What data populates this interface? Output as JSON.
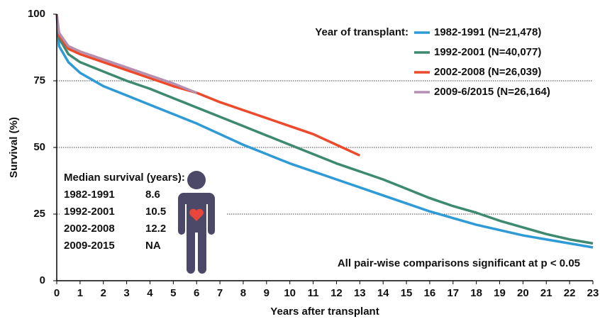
{
  "chart_data": {
    "type": "line",
    "xlabel": "Years after transplant",
    "ylabel": "Survival (%)",
    "legend_title": "Year of transplant:",
    "legend": "top-right",
    "x": [
      0,
      0.1,
      0.5,
      1,
      2,
      3,
      4,
      5,
      6,
      7,
      8,
      9,
      10,
      11,
      12,
      13,
      14,
      15,
      16,
      17,
      18,
      19,
      20,
      21,
      22,
      23
    ],
    "series": [
      {
        "name": "1982-1991 (N=21,478)",
        "color": "#2e9bd6",
        "values": [
          100,
          88,
          82,
          78,
          73,
          69.5,
          66,
          62.5,
          59,
          55,
          51,
          47.5,
          44,
          41,
          38,
          35,
          32,
          29,
          26,
          23.5,
          21,
          19,
          17,
          15.5,
          14,
          12.5
        ]
      },
      {
        "name": "1992-2001 (N=40,077)",
        "color": "#3d8a70",
        "values": [
          100,
          91,
          85,
          82,
          78.5,
          75,
          72,
          68.5,
          65,
          61.5,
          58,
          54.5,
          51,
          47.5,
          44,
          41,
          38,
          34.5,
          31,
          28,
          25.5,
          22.5,
          20,
          17.5,
          15.5,
          14
        ]
      },
      {
        "name": "2002-2008 (N=26,039)",
        "color": "#ec4a2a",
        "values": [
          100,
          92,
          87,
          85,
          82,
          79,
          76,
          73,
          70.5,
          67,
          64,
          61,
          58,
          55,
          51,
          47,
          null,
          null,
          null,
          null,
          null,
          null,
          null,
          null,
          null,
          null
        ]
      },
      {
        "name": "2009-6/2015 (N=26,164)",
        "color": "#b48fb0",
        "values": [
          100,
          93,
          88,
          86,
          83,
          80,
          77,
          74,
          70.5,
          null,
          null,
          null,
          null,
          null,
          null,
          null,
          null,
          null,
          null,
          null,
          null,
          null,
          null,
          null,
          null,
          null
        ]
      }
    ],
    "xlim": [
      0,
      23
    ],
    "xticks": [
      0,
      1,
      2,
      3,
      4,
      5,
      6,
      7,
      8,
      9,
      10,
      11,
      12,
      13,
      14,
      15,
      16,
      17,
      18,
      19,
      20,
      21,
      22,
      23
    ],
    "ylim": [
      0,
      100
    ],
    "yticks": [
      0,
      25,
      50,
      75,
      100
    ],
    "grid": true,
    "median_survival": {
      "title": "Median survival (years):",
      "rows": [
        [
          "1982-1991",
          "8.6"
        ],
        [
          "1992-2001",
          "10.5"
        ],
        [
          "2002-2008",
          "12.2"
        ],
        [
          "2009-2015",
          "NA"
        ]
      ]
    },
    "annotation": "All pair-wise comparisons significant at p < 0.05"
  }
}
